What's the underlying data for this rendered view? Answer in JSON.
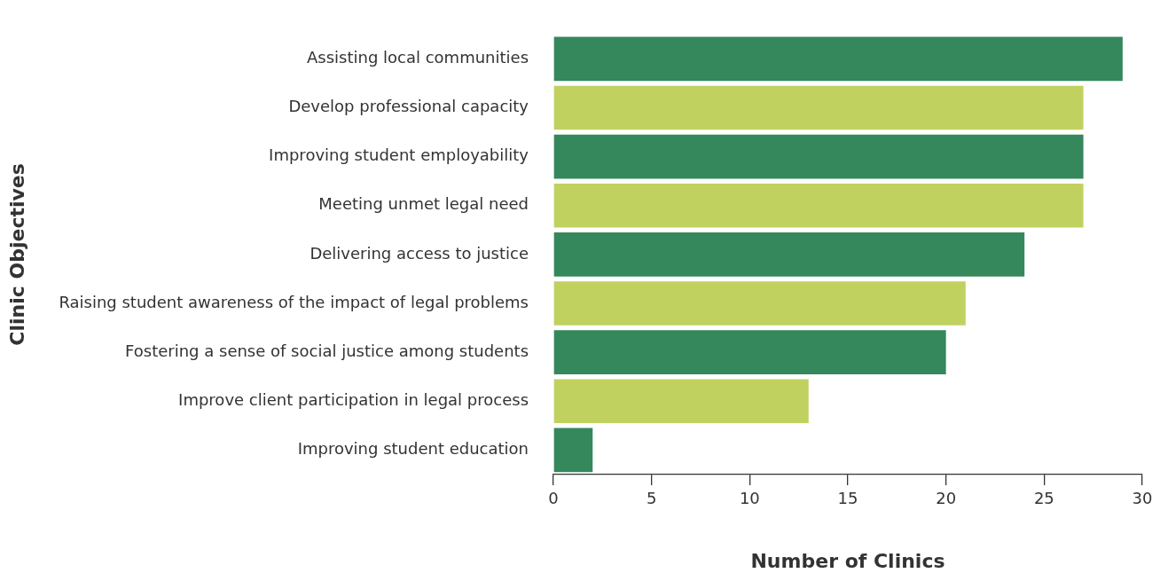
{
  "chart_data": {
    "type": "bar",
    "orientation": "horizontal",
    "xlabel": "Number of Clinics",
    "ylabel": "Clinic Objectives",
    "categories": [
      "Assisting local communities",
      "Develop professional capacity",
      "Improving student employability",
      "Meeting unmet legal need",
      "Delivering access to justice",
      "Raising student awareness of the impact of legal problems",
      "Fostering a sense of social justice among students",
      "Improve client participation in legal process",
      "Improving student education"
    ],
    "values": [
      29,
      27,
      27,
      27,
      24,
      21,
      20,
      13,
      2
    ],
    "colors": [
      "#35875c",
      "#c1d160",
      "#35875c",
      "#c1d160",
      "#35875c",
      "#c1d160",
      "#35875c",
      "#c1d160",
      "#35875c"
    ],
    "xlim": [
      0,
      30
    ],
    "xticks": [
      0,
      5,
      10,
      15,
      20,
      25,
      30
    ],
    "grid": false,
    "legend": false
  }
}
